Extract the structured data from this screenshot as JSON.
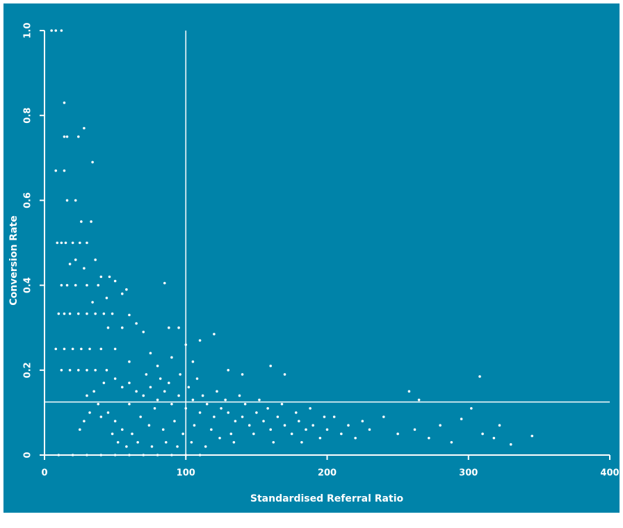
{
  "chart_data": {
    "type": "scatter",
    "x_label": "Standardised Referral Ratio",
    "y_label": "Conversion Rate",
    "color": "#ffffff",
    "background": "#0083a9",
    "xlim": [
      0,
      400
    ],
    "xticks": [
      0,
      100,
      200,
      300,
      400
    ],
    "ylim": [
      0,
      1
    ],
    "yticks": [
      0,
      0.2,
      0.4,
      0.6,
      0.8,
      {
        "value": 1,
        "label": "1.0"
      }
    ],
    "vlines": [
      100
    ],
    "hlines": [
      0.125
    ],
    "x": [
      5,
      8,
      12,
      14,
      28,
      24,
      14,
      16,
      34,
      8,
      14,
      16,
      22,
      26,
      33,
      9,
      12,
      15,
      20,
      25,
      30,
      18,
      22,
      28,
      36,
      40,
      46,
      50,
      85,
      12,
      16,
      22,
      30,
      38,
      55,
      58,
      44,
      34,
      10,
      14,
      18,
      24,
      30,
      36,
      42,
      48,
      60,
      65,
      70,
      55,
      45,
      88,
      95,
      120,
      110,
      100,
      8,
      14,
      20,
      26,
      32,
      40,
      50,
      75,
      90,
      60,
      80,
      105,
      130,
      140,
      160,
      170,
      12,
      18,
      24,
      30,
      36,
      44,
      50,
      55,
      60,
      65,
      70,
      75,
      80,
      85,
      90,
      95,
      100,
      105,
      110,
      115,
      120,
      125,
      130,
      135,
      140,
      145,
      150,
      155,
      160,
      165,
      170,
      175,
      180,
      185,
      190,
      195,
      200,
      205,
      210,
      215,
      220,
      225,
      230,
      240,
      250,
      258,
      265,
      262,
      272,
      280,
      288,
      295,
      302,
      308,
      310,
      318,
      322,
      330,
      345,
      45,
      50,
      55,
      60,
      62,
      68,
      72,
      74,
      78,
      82,
      84,
      88,
      92,
      96,
      98,
      102,
      106,
      108,
      112,
      118,
      122,
      128,
      132,
      138,
      142,
      148,
      152,
      158,
      162,
      168,
      178,
      182,
      188,
      198,
      35,
      38,
      40,
      42,
      30,
      32,
      28,
      25,
      48,
      52,
      58,
      66,
      76,
      86,
      94,
      104,
      114,
      124,
      134,
      10,
      20,
      30,
      40,
      50,
      60,
      70,
      80,
      90,
      100,
      110
    ],
    "values": [
      1,
      1,
      1,
      0.83,
      0.77,
      0.75,
      0.75,
      0.75,
      0.69,
      0.67,
      0.67,
      0.6,
      0.6,
      0.55,
      0.55,
      0.5,
      0.5,
      0.5,
      0.5,
      0.5,
      0.5,
      0.45,
      0.46,
      0.44,
      0.46,
      0.42,
      0.42,
      0.41,
      0.405,
      0.4,
      0.4,
      0.4,
      0.4,
      0.4,
      0.38,
      0.39,
      0.37,
      0.36,
      0.333,
      0.333,
      0.333,
      0.333,
      0.333,
      0.333,
      0.333,
      0.333,
      0.33,
      0.31,
      0.29,
      0.3,
      0.3,
      0.3,
      0.3,
      0.285,
      0.27,
      0.26,
      0.25,
      0.25,
      0.25,
      0.25,
      0.25,
      0.25,
      0.25,
      0.24,
      0.23,
      0.22,
      0.21,
      0.22,
      0.2,
      0.19,
      0.21,
      0.19,
      0.2,
      0.2,
      0.2,
      0.2,
      0.2,
      0.2,
      0.18,
      0.16,
      0.17,
      0.15,
      0.14,
      0.16,
      0.13,
      0.15,
      0.12,
      0.14,
      0.11,
      0.13,
      0.1,
      0.12,
      0.09,
      0.11,
      0.1,
      0.08,
      0.09,
      0.07,
      0.1,
      0.08,
      0.06,
      0.09,
      0.07,
      0.05,
      0.08,
      0.06,
      0.07,
      0.04,
      0.06,
      0.09,
      0.05,
      0.07,
      0.04,
      0.08,
      0.06,
      0.09,
      0.05,
      0.15,
      0.13,
      0.06,
      0.04,
      0.07,
      0.03,
      0.085,
      0.11,
      0.185,
      0.05,
      0.04,
      0.07,
      0.025,
      0.045,
      0.1,
      0.08,
      0.06,
      0.12,
      0.05,
      0.09,
      0.19,
      0.07,
      0.11,
      0.18,
      0.06,
      0.17,
      0.08,
      0.19,
      0.05,
      0.16,
      0.07,
      0.18,
      0.14,
      0.06,
      0.15,
      0.13,
      0.05,
      0.14,
      0.12,
      0.05,
      0.13,
      0.11,
      0.03,
      0.12,
      0.1,
      0.03,
      0.11,
      0.09,
      0.15,
      0.12,
      0.09,
      0.17,
      0.14,
      0.1,
      0.08,
      0.06,
      0.05,
      0.03,
      0.02,
      0.03,
      0.02,
      0.03,
      0.02,
      0.03,
      0.02,
      0.04,
      0.03,
      0,
      0,
      0,
      0,
      0,
      0,
      0,
      0,
      0,
      0,
      0
    ]
  }
}
